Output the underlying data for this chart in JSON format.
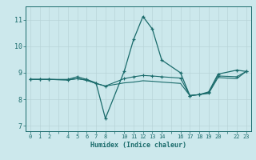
{
  "xlabel": "Humidex (Indice chaleur)",
  "bg_color": "#cce8ec",
  "line_color": "#1a6b6b",
  "grid_color": "#b8d4d8",
  "xlim": [
    -0.5,
    23.5
  ],
  "ylim": [
    6.8,
    11.5
  ],
  "xticks_major": [
    0,
    1,
    2,
    3,
    4,
    5,
    6,
    7,
    8,
    9,
    10,
    11,
    12,
    13,
    14,
    15,
    16,
    17,
    18,
    19,
    20,
    21,
    22,
    23
  ],
  "xtick_labels": [
    "0",
    "1",
    "2",
    "",
    "4",
    "5",
    "6",
    "7",
    "8",
    "",
    "10",
    "11",
    "12",
    "13",
    "14",
    "",
    "16",
    "17",
    "18",
    "19",
    "20",
    "",
    "22",
    "23"
  ],
  "yticks": [
    7,
    8,
    9,
    10,
    11
  ],
  "line1_x": [
    0,
    1,
    2,
    4,
    5,
    6,
    7,
    8,
    10,
    11,
    12,
    13,
    14,
    16,
    17,
    18,
    19,
    20,
    22,
    23
  ],
  "line1_y": [
    8.75,
    8.75,
    8.75,
    8.75,
    8.85,
    8.75,
    8.62,
    7.28,
    9.05,
    10.25,
    11.12,
    10.65,
    9.48,
    9.0,
    8.14,
    8.18,
    8.28,
    8.95,
    9.1,
    9.05
  ],
  "line2_x": [
    0,
    1,
    2,
    4,
    5,
    6,
    7,
    8,
    10,
    11,
    12,
    13,
    14,
    16,
    17,
    18,
    19,
    20,
    22,
    23
  ],
  "line2_y": [
    8.75,
    8.75,
    8.75,
    8.73,
    8.78,
    8.72,
    8.6,
    8.5,
    8.78,
    8.85,
    8.9,
    8.88,
    8.85,
    8.8,
    8.14,
    8.18,
    8.25,
    8.88,
    8.85,
    9.05
  ],
  "line3_x": [
    0,
    1,
    2,
    4,
    5,
    6,
    7,
    8,
    10,
    11,
    12,
    13,
    14,
    16,
    17,
    18,
    19,
    20,
    22,
    23
  ],
  "line3_y": [
    8.75,
    8.75,
    8.75,
    8.73,
    8.78,
    8.72,
    8.6,
    8.5,
    8.62,
    8.65,
    8.7,
    8.68,
    8.65,
    8.6,
    8.14,
    8.18,
    8.22,
    8.82,
    8.78,
    9.05
  ]
}
